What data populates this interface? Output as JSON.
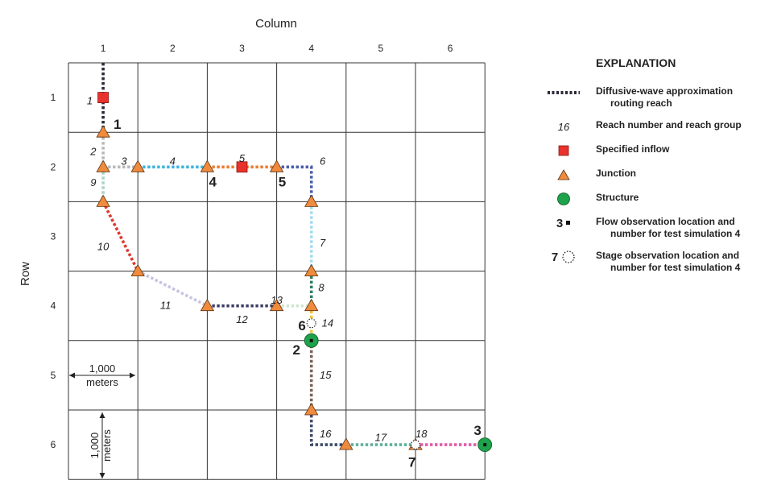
{
  "axes": {
    "column_title": "Column",
    "row_title": "Row",
    "column_labels": [
      "1",
      "2",
      "3",
      "4",
      "5",
      "6"
    ],
    "row_labels": [
      "1",
      "2",
      "3",
      "4",
      "5",
      "6"
    ]
  },
  "scale": {
    "horizontal_value": "1,000",
    "horizontal_unit": "meters",
    "vertical_value": "1,000",
    "vertical_unit": "meters"
  },
  "reaches": [
    {
      "id": "1",
      "color": "#2a2a3a"
    },
    {
      "id": "2",
      "color": "#b7b7b7"
    },
    {
      "id": "3",
      "color": "#b7b7b7"
    },
    {
      "id": "4",
      "color": "#3ab3dc"
    },
    {
      "id": "5",
      "color": "#ee7a2e"
    },
    {
      "id": "6",
      "color": "#4a5ea8"
    },
    {
      "id": "7",
      "color": "#a5d9ee"
    },
    {
      "id": "8",
      "color": "#2f7d64"
    },
    {
      "id": "9",
      "color": "#a9d4c6"
    },
    {
      "id": "10",
      "color": "#e0382e"
    },
    {
      "id": "11",
      "color": "#c8c4e2"
    },
    {
      "id": "12",
      "color": "#3d3d63"
    },
    {
      "id": "13",
      "color": "#cfe6cf"
    },
    {
      "id": "14",
      "color": "#e9c93a"
    },
    {
      "id": "15",
      "color": "#7a6458"
    },
    {
      "id": "16",
      "color": "#3d4a6a"
    },
    {
      "id": "17",
      "color": "#5fae98"
    },
    {
      "id": "18",
      "color": "#e25aa6"
    }
  ],
  "junction_numbers": [
    "1",
    "4",
    "5"
  ],
  "flow_observation_numbers": [
    "2",
    "3"
  ],
  "stage_observation_numbers": [
    "6",
    "7"
  ],
  "colors": {
    "specified_inflow": "#e8322b",
    "junction": "#f08a3c",
    "structure": "#1ea24b",
    "grid": "#333333"
  },
  "legend": {
    "title": "EXPLANATION",
    "routing_reach_1": "Diffusive-wave approximation",
    "routing_reach_2": "routing reach",
    "reach_number_sample": "16",
    "reach_number_text": "Reach number and reach group",
    "specified_inflow": "Specified inflow",
    "junction": "Junction",
    "structure": "Structure",
    "flow_obs_sample": "3",
    "flow_obs_1": "Flow observation location and",
    "flow_obs_2": "number for test simulation 4",
    "stage_obs_sample": "7",
    "stage_obs_1": "Stage observation location and",
    "stage_obs_2": "number for test simulation 4"
  }
}
